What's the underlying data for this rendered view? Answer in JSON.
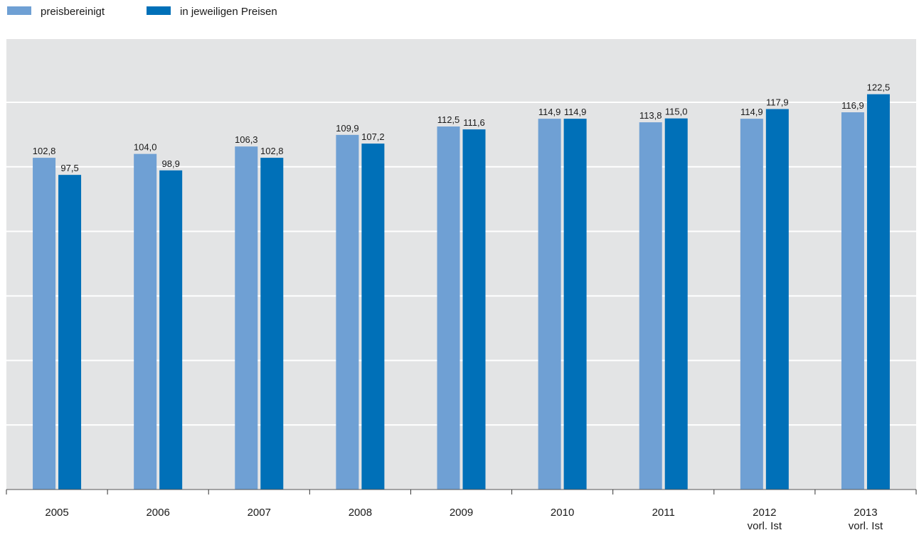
{
  "legend": {
    "items": [
      {
        "label": "preisbereinigt",
        "color": "#6fa0d4"
      },
      {
        "label": "in jeweiligen Preisen",
        "color": "#0070b8"
      }
    ]
  },
  "chart_data": {
    "type": "bar",
    "title": "",
    "xlabel": "",
    "ylabel": "",
    "ylim": [
      0,
      120
    ],
    "grid": true,
    "legend_position": "top-left",
    "background_color": "#e3e4e5",
    "categories": [
      {
        "label": "2005",
        "sublabel": ""
      },
      {
        "label": "2006",
        "sublabel": ""
      },
      {
        "label": "2007",
        "sublabel": ""
      },
      {
        "label": "2008",
        "sublabel": ""
      },
      {
        "label": "2009",
        "sublabel": ""
      },
      {
        "label": "2010",
        "sublabel": ""
      },
      {
        "label": "2011",
        "sublabel": ""
      },
      {
        "label": "2012",
        "sublabel": "vorl. Ist"
      },
      {
        "label": "2013",
        "sublabel": "vorl. Ist"
      }
    ],
    "series": [
      {
        "name": "preisbereinigt",
        "color": "#6fa0d4",
        "values": [
          102.8,
          104.0,
          106.3,
          109.9,
          112.5,
          114.9,
          113.8,
          114.9,
          116.9
        ],
        "labels": [
          "102,8",
          "104,0",
          "106,3",
          "109,9",
          "112,5",
          "114,9",
          "113,8",
          "114,9",
          "116,9"
        ]
      },
      {
        "name": "in jeweiligen Preisen",
        "color": "#0070b8",
        "values": [
          97.5,
          98.9,
          102.8,
          107.2,
          111.6,
          114.9,
          115.0,
          117.9,
          122.5
        ],
        "labels": [
          "97,5",
          "98,9",
          "102,8",
          "107,2",
          "111,6",
          "114,9",
          "115,0",
          "117,9",
          "122,5"
        ]
      }
    ]
  }
}
